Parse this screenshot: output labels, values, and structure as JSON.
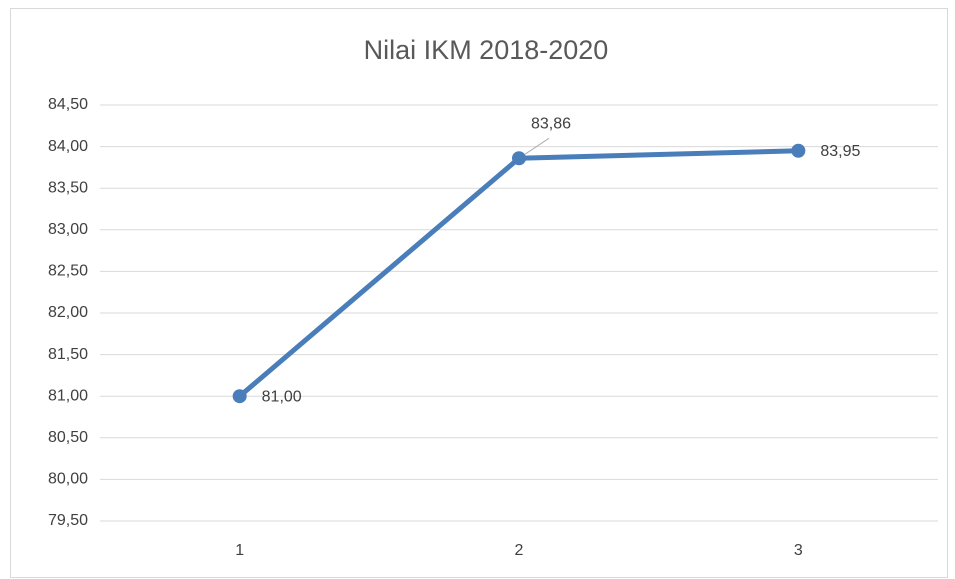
{
  "chart_data": {
    "type": "line",
    "title": "Nilai IKM 2018-2020",
    "categories": [
      "1",
      "2",
      "3"
    ],
    "values": [
      81.0,
      83.86,
      83.95
    ],
    "value_labels": [
      "81,00",
      "83,86",
      "83,95"
    ],
    "color": "#4a7ebb",
    "ylim": [
      79.5,
      84.5
    ],
    "yticks": [
      {
        "value": 79.5,
        "label": "79,50"
      },
      {
        "value": 80.0,
        "label": "80,00"
      },
      {
        "value": 80.5,
        "label": "80,50"
      },
      {
        "value": 81.0,
        "label": "81,00"
      },
      {
        "value": 81.5,
        "label": "81,50"
      },
      {
        "value": 82.0,
        "label": "82,00"
      },
      {
        "value": 82.5,
        "label": "82,50"
      },
      {
        "value": 83.0,
        "label": "83,00"
      },
      {
        "value": 83.5,
        "label": "83,50"
      },
      {
        "value": 84.0,
        "label": "84,00"
      },
      {
        "value": 84.5,
        "label": "84,50"
      }
    ],
    "grid": true
  }
}
